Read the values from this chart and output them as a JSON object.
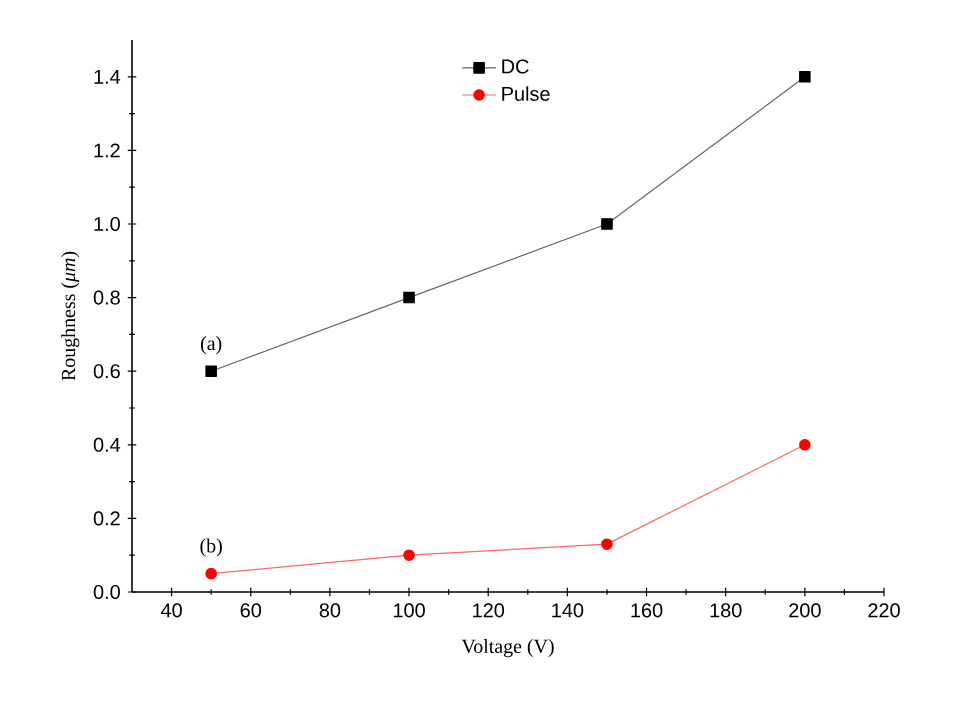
{
  "chart_data": {
    "type": "line",
    "xlabel": "Voltage (V)",
    "ylabel": "Roughness (*μm*)",
    "x": [
      50,
      100,
      150,
      200
    ],
    "series": [
      {
        "name": "DC",
        "color": "#000000",
        "marker": "square",
        "values": [
          0.6,
          0.8,
          1.0,
          1.4
        ]
      },
      {
        "name": "Pulse",
        "color": "#ff0000",
        "marker": "circle",
        "values": [
          0.05,
          0.1,
          0.13,
          0.4
        ]
      }
    ],
    "xlim": [
      30,
      220
    ],
    "ylim": [
      0,
      1.5
    ],
    "xticks": [
      40,
      60,
      80,
      100,
      120,
      140,
      160,
      180,
      200,
      220
    ],
    "yticks": [
      {
        "value": 0,
        "label": "0.0"
      },
      0.2,
      0.4,
      0.6,
      0.8,
      {
        "value": 1,
        "label": "1.0"
      },
      1.2,
      1.4
    ],
    "annotations": [
      {
        "text": "(a)",
        "x": 50,
        "y": 0.6
      },
      {
        "text": "(b)",
        "x": 50,
        "y": 0.05
      }
    ],
    "legend": "top",
    "grid": false,
    "line_style": "solid"
  }
}
